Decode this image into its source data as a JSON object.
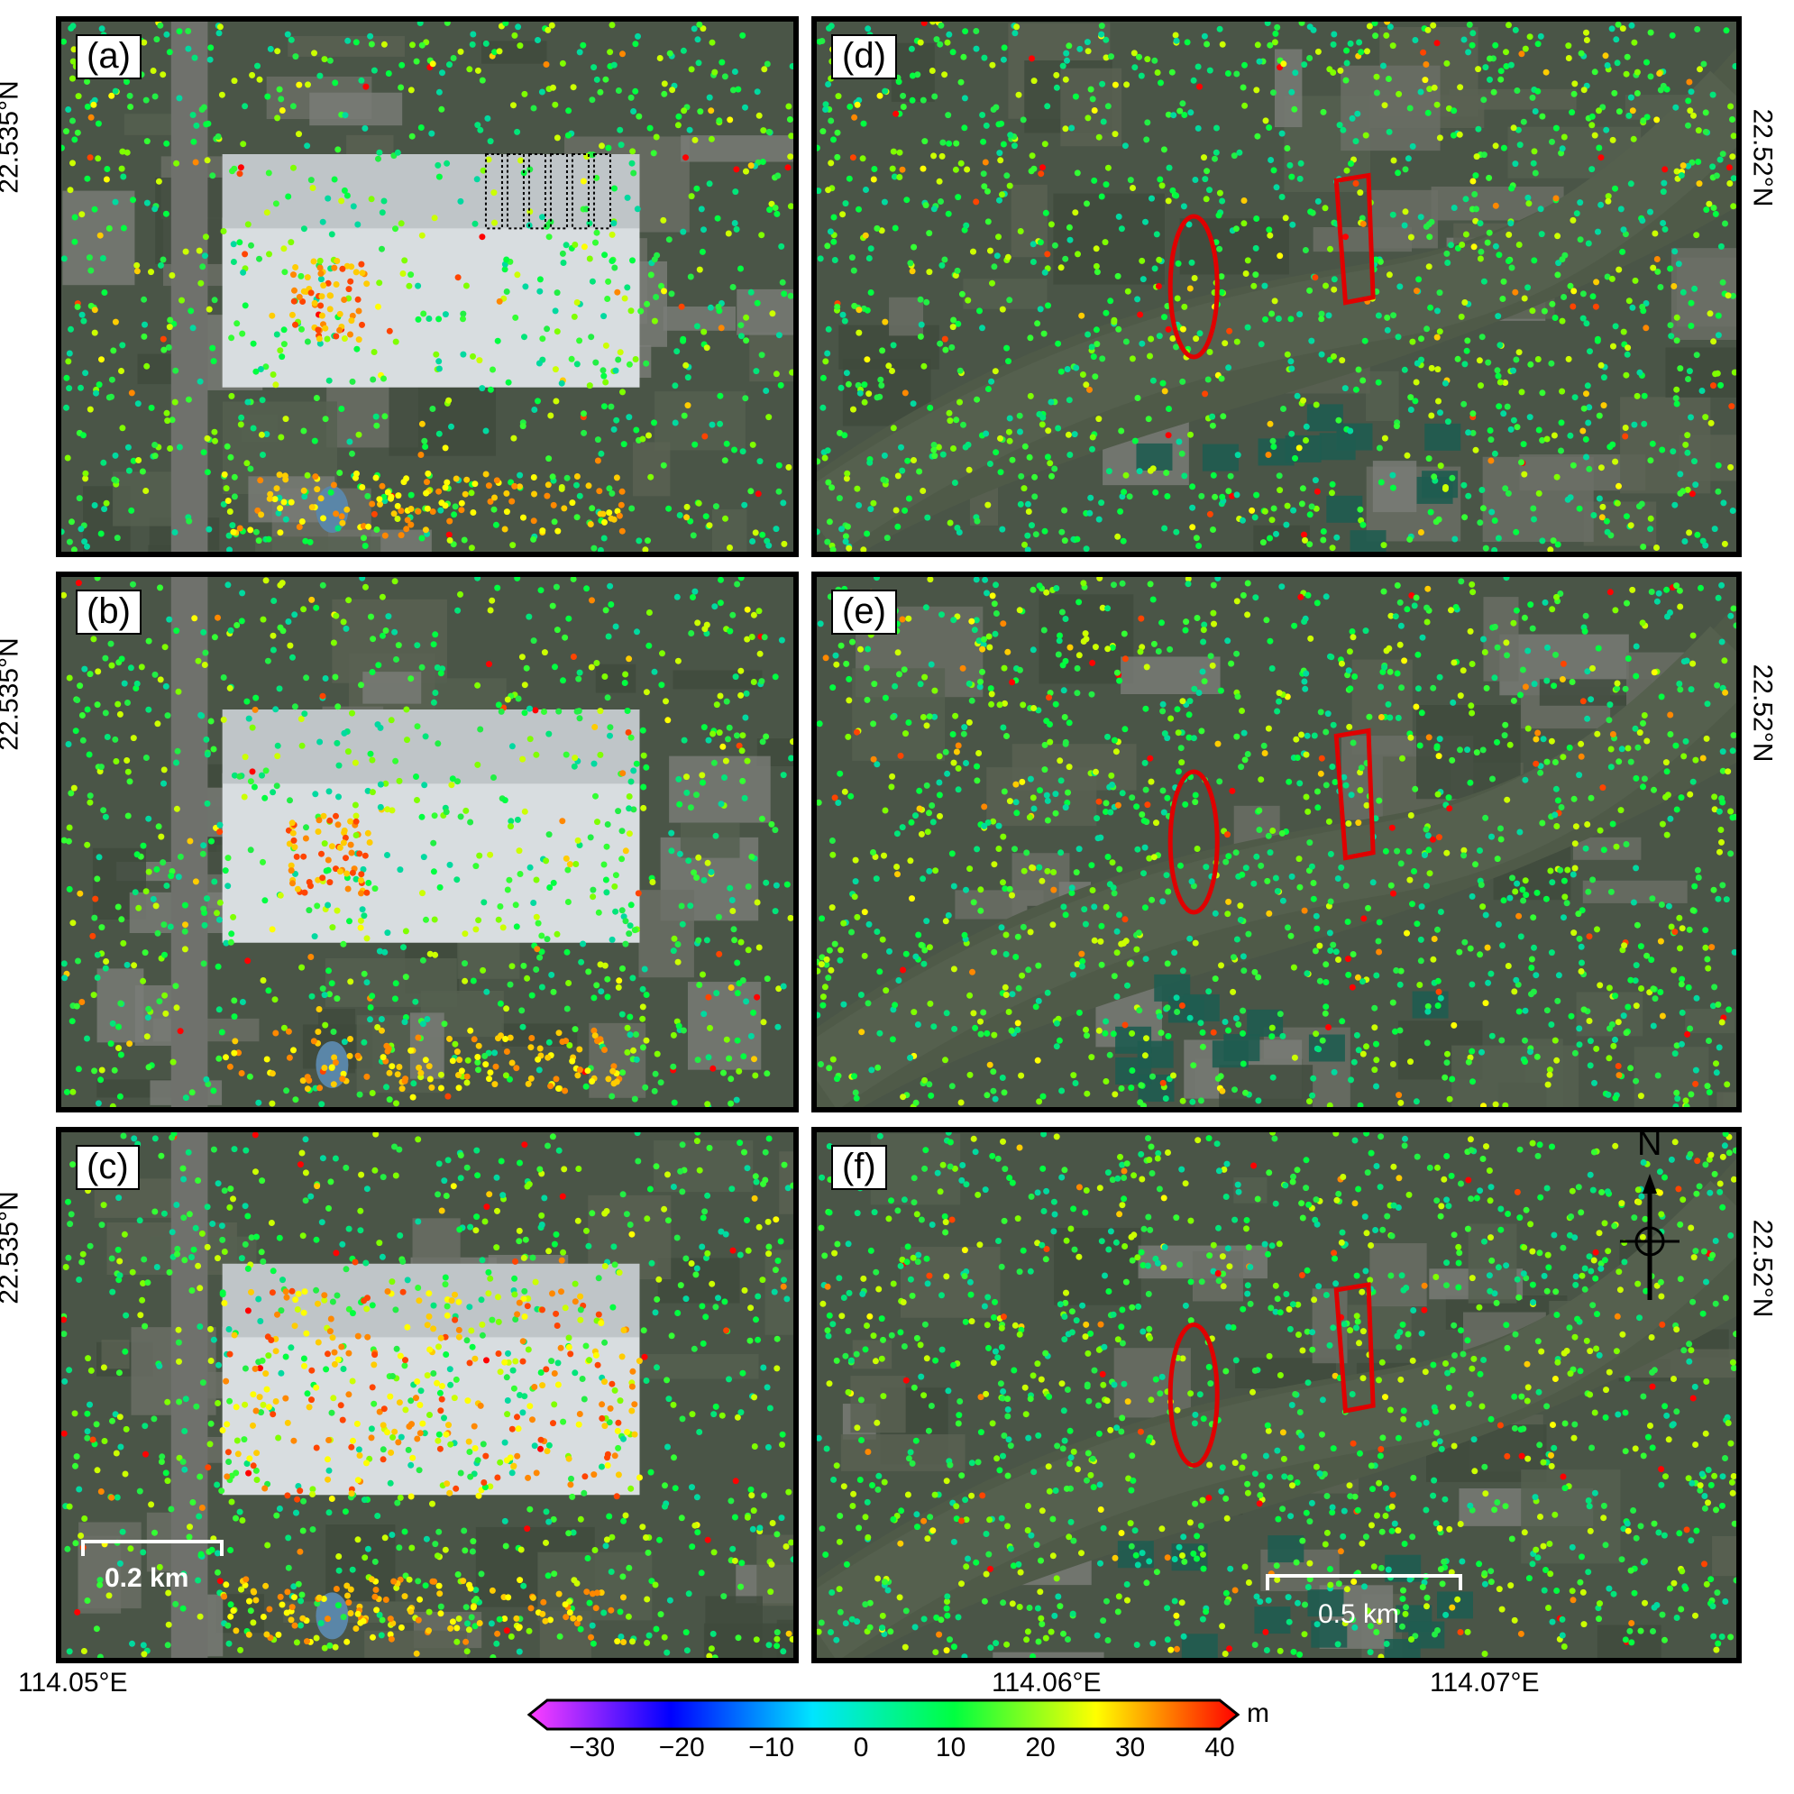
{
  "panels": [
    {
      "label": "(a)"
    },
    {
      "label": "(b)"
    },
    {
      "label": "(c)"
    },
    {
      "label": "(d)"
    },
    {
      "label": "(e)"
    },
    {
      "label": "(f)"
    }
  ],
  "axes": {
    "lat_left": "22.535°N",
    "lat_right": "22.52°N",
    "lon_labels": [
      "114.05°E",
      "114.06°E",
      "114.07°E"
    ]
  },
  "scale_bars": {
    "left": "0.2 km",
    "right": "0.5 km"
  },
  "north_arrow": "N",
  "colorbar": {
    "unit": "m",
    "min": -35,
    "max": 40,
    "ticks": [
      "−30",
      "−20",
      "−10",
      "0",
      "10",
      "20",
      "30",
      "40"
    ],
    "tick_values": [
      -30,
      -20,
      -10,
      0,
      10,
      20,
      30,
      40
    ],
    "colors": [
      "#ff40ff",
      "#0000ff",
      "#00e5ff",
      "#00ff40",
      "#ffff00",
      "#ff0000"
    ]
  }
}
